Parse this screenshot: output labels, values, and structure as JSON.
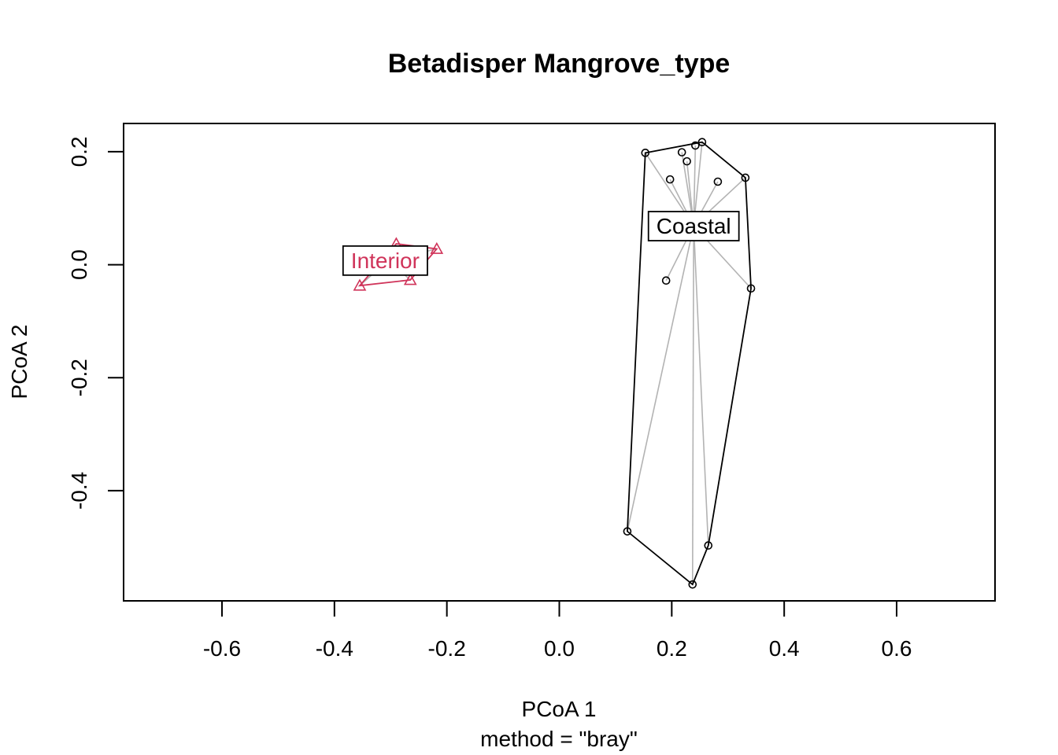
{
  "chart_data": {
    "type": "scatter",
    "title": "Betadisper  Mangrove_type",
    "xlabel": "PCoA 1",
    "xsublabel": "method = \"bray\"",
    "ylabel": "PCoA 2",
    "xlim": [
      -0.775,
      0.775
    ],
    "ylim": [
      -0.595,
      0.25
    ],
    "x_ticks": [
      -0.6,
      -0.4,
      -0.2,
      0.0,
      0.2,
      0.4,
      0.6
    ],
    "x_tick_labels": [
      "-0.6",
      "-0.4",
      "-0.2",
      "0.0",
      "0.2",
      "0.4",
      "0.6"
    ],
    "y_ticks": [
      -0.4,
      -0.2,
      0.0,
      0.2
    ],
    "y_tick_labels": [
      "-0.4",
      "-0.2",
      "0.0",
      "0.2"
    ],
    "grid": false,
    "groups": [
      {
        "name": "Coastal",
        "color": "#000000",
        "marker": "circle",
        "centroid": [
          0.239,
          0.069
        ],
        "points": [
          [
            0.153,
            0.198
          ],
          [
            0.218,
            0.199
          ],
          [
            0.242,
            0.211
          ],
          [
            0.254,
            0.217
          ],
          [
            0.227,
            0.183
          ],
          [
            0.197,
            0.151
          ],
          [
            0.282,
            0.147
          ],
          [
            0.331,
            0.154
          ],
          [
            0.19,
            -0.028
          ],
          [
            0.341,
            -0.042
          ],
          [
            0.121,
            -0.472
          ],
          [
            0.265,
            -0.497
          ],
          [
            0.237,
            -0.566
          ]
        ],
        "hull": [
          [
            0.153,
            0.198
          ],
          [
            0.254,
            0.217
          ],
          [
            0.331,
            0.154
          ],
          [
            0.341,
            -0.042
          ],
          [
            0.265,
            -0.497
          ],
          [
            0.237,
            -0.566
          ],
          [
            0.121,
            -0.472
          ]
        ]
      },
      {
        "name": "Interior",
        "color": "#d0345a",
        "marker": "triangle",
        "centroid": [
          -0.304,
          0.008
        ],
        "points": [
          [
            -0.29,
            0.037
          ],
          [
            -0.218,
            0.028
          ],
          [
            -0.355,
            -0.037
          ],
          [
            -0.265,
            -0.027
          ],
          [
            -0.32,
            -0.006
          ]
        ],
        "hull": [
          [
            -0.29,
            0.037
          ],
          [
            -0.218,
            0.028
          ],
          [
            -0.265,
            -0.027
          ],
          [
            -0.355,
            -0.037
          ]
        ]
      }
    ]
  }
}
